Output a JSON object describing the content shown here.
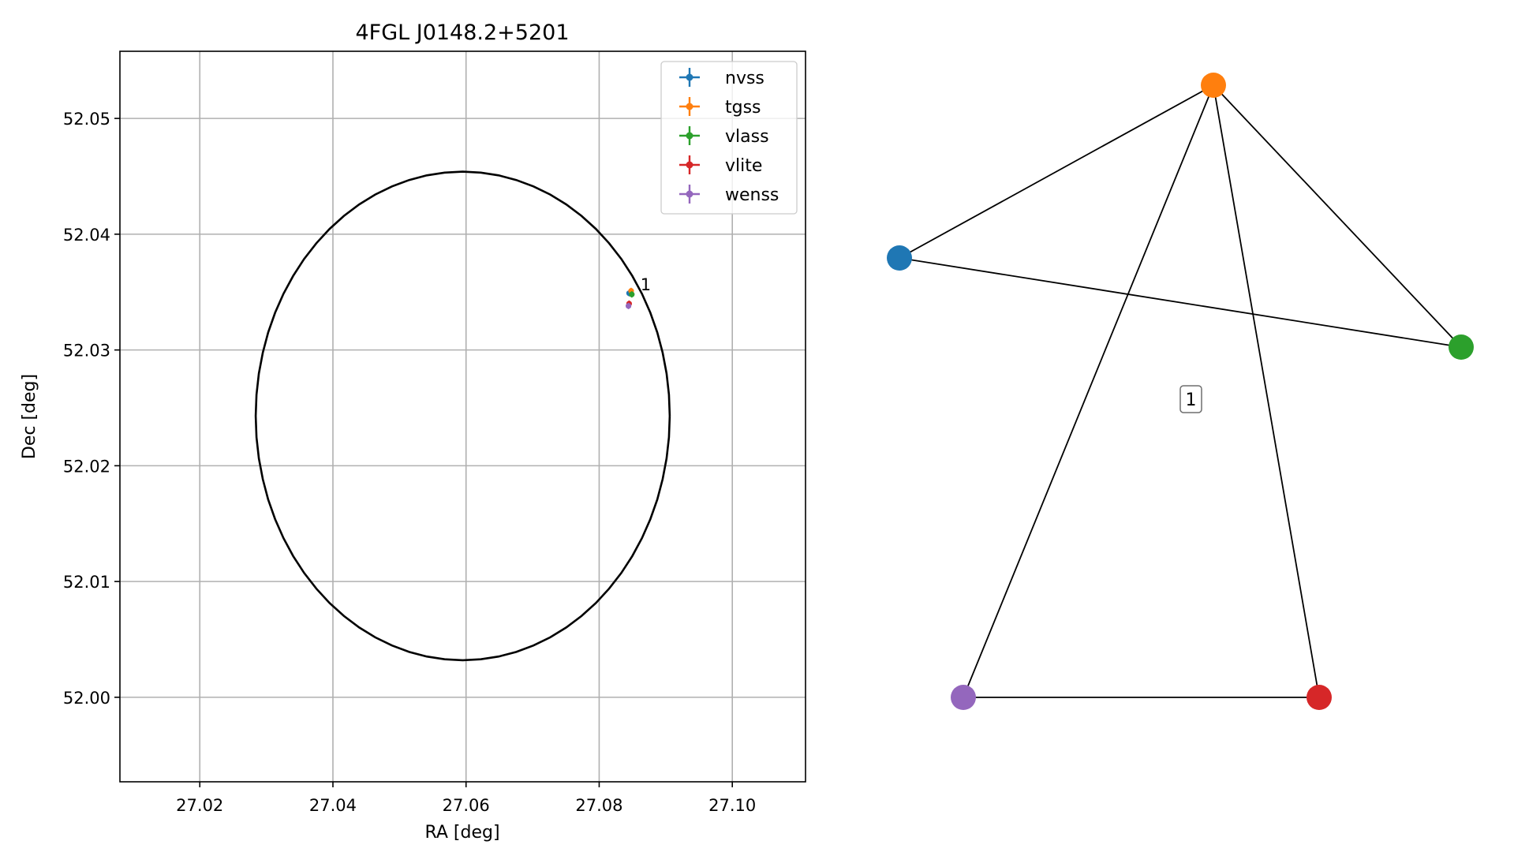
{
  "chart_data": [
    {
      "type": "scatter",
      "title": "4FGL J0148.2+5201",
      "xlabel": "RA [deg]",
      "ylabel": "Dec [deg]",
      "xlim": [
        27.008,
        27.111
      ],
      "ylim": [
        51.9927,
        52.0558
      ],
      "xticks": [
        27.02,
        27.04,
        27.06,
        27.08,
        27.1
      ],
      "xtick_labels": [
        "27.02",
        "27.04",
        "27.06",
        "27.08",
        "27.10"
      ],
      "yticks": [
        52.0,
        52.01,
        52.02,
        52.03,
        52.04,
        52.05
      ],
      "ytick_labels": [
        "52.00",
        "52.01",
        "52.02",
        "52.03",
        "52.04",
        "52.05"
      ],
      "grid": true,
      "legend_position": "top-right",
      "ellipse": {
        "center_ra": 27.0595,
        "center_dec": 52.0243,
        "semi_axis_ra": 0.0311,
        "semi_axis_dec": 0.0211,
        "color": "#000000"
      },
      "series": [
        {
          "name": "nvss",
          "color": "#1f77b4",
          "x": [
            27.0845
          ],
          "y": [
            52.0349
          ]
        },
        {
          "name": "tgss",
          "color": "#ff7f0e",
          "x": [
            27.0848
          ],
          "y": [
            52.0351
          ]
        },
        {
          "name": "vlass",
          "color": "#2ca02c",
          "x": [
            27.0849
          ],
          "y": [
            52.0348
          ]
        },
        {
          "name": "vlite",
          "color": "#d62728",
          "x": [
            27.0845
          ],
          "y": [
            52.034
          ]
        },
        {
          "name": "wenss",
          "color": "#9467bd",
          "x": [
            27.0844
          ],
          "y": [
            52.0338
          ]
        }
      ],
      "annotations": [
        {
          "text": "1",
          "x": 27.0862,
          "y": 52.0353
        }
      ]
    },
    {
      "type": "graph",
      "nodes": [
        {
          "id": "nvss",
          "color": "#1f77b4"
        },
        {
          "id": "tgss",
          "color": "#ff7f0e"
        },
        {
          "id": "vlass",
          "color": "#2ca02c"
        },
        {
          "id": "vlite",
          "color": "#d62728"
        },
        {
          "id": "wenss",
          "color": "#9467bd"
        }
      ],
      "edges": [
        [
          "nvss",
          "tgss"
        ],
        [
          "nvss",
          "vlass"
        ],
        [
          "tgss",
          "vlass"
        ],
        [
          "tgss",
          "wenss"
        ],
        [
          "tgss",
          "vlite"
        ],
        [
          "wenss",
          "vlite"
        ]
      ],
      "labels": [
        {
          "text": "1"
        }
      ]
    }
  ]
}
